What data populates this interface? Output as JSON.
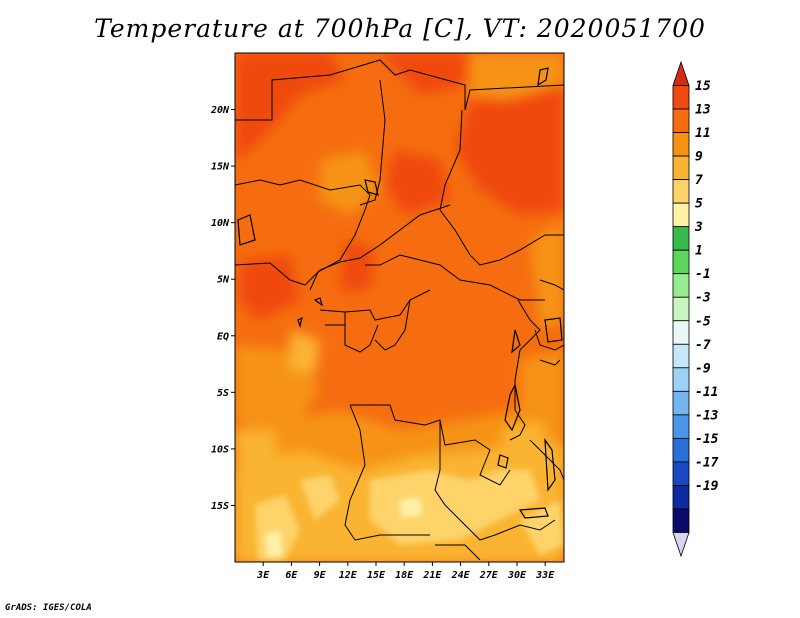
{
  "chart_data": {
    "type": "heatmap",
    "title": "Temperature at 700hPa [C], VT: 2020051700",
    "xlabel": "",
    "ylabel": "",
    "x_ticks": [
      "3E",
      "6E",
      "9E",
      "12E",
      "15E",
      "18E",
      "21E",
      "24E",
      "27E",
      "30E",
      "33E"
    ],
    "x_tick_values": [
      3,
      6,
      9,
      12,
      15,
      18,
      21,
      24,
      27,
      30,
      33
    ],
    "y_ticks": [
      "20N",
      "15N",
      "10N",
      "5N",
      "EQ",
      "5S",
      "10S",
      "15S"
    ],
    "y_tick_values": [
      20,
      15,
      10,
      5,
      0,
      -5,
      -10,
      -15
    ],
    "xlim": [
      0,
      35
    ],
    "ylim": [
      -20,
      25
    ],
    "colorbar": {
      "labels": [
        "15",
        "13",
        "11",
        "9",
        "7",
        "5",
        "3",
        "1",
        "-1",
        "-3",
        "-5",
        "-7",
        "-9",
        "-11",
        "-13",
        "-15",
        "-17",
        "-19"
      ],
      "colors": [
        "#d72a12",
        "#f04a10",
        "#f56d10",
        "#f69315",
        "#fab431",
        "#fdd36a",
        "#fef2a7",
        "#37b94b",
        "#5cd65d",
        "#97ec90",
        "#c9f6c0",
        "#e9f8f4",
        "#c6e7fa",
        "#9fd1f6",
        "#75b5f0",
        "#4c95e8",
        "#2a6fd8",
        "#1a48c0",
        "#0e2aa0",
        "#0a0a6b",
        "#d8d4f2"
      ]
    },
    "field_description": "Temperature field ranging mostly 5–15 C; warmest (13–15) in the north and central regions, cooler (5–9) in the south-east around 15S–20S, 20E–30E."
  },
  "footer": {
    "credit": "GrADS: IGES/COLA"
  }
}
